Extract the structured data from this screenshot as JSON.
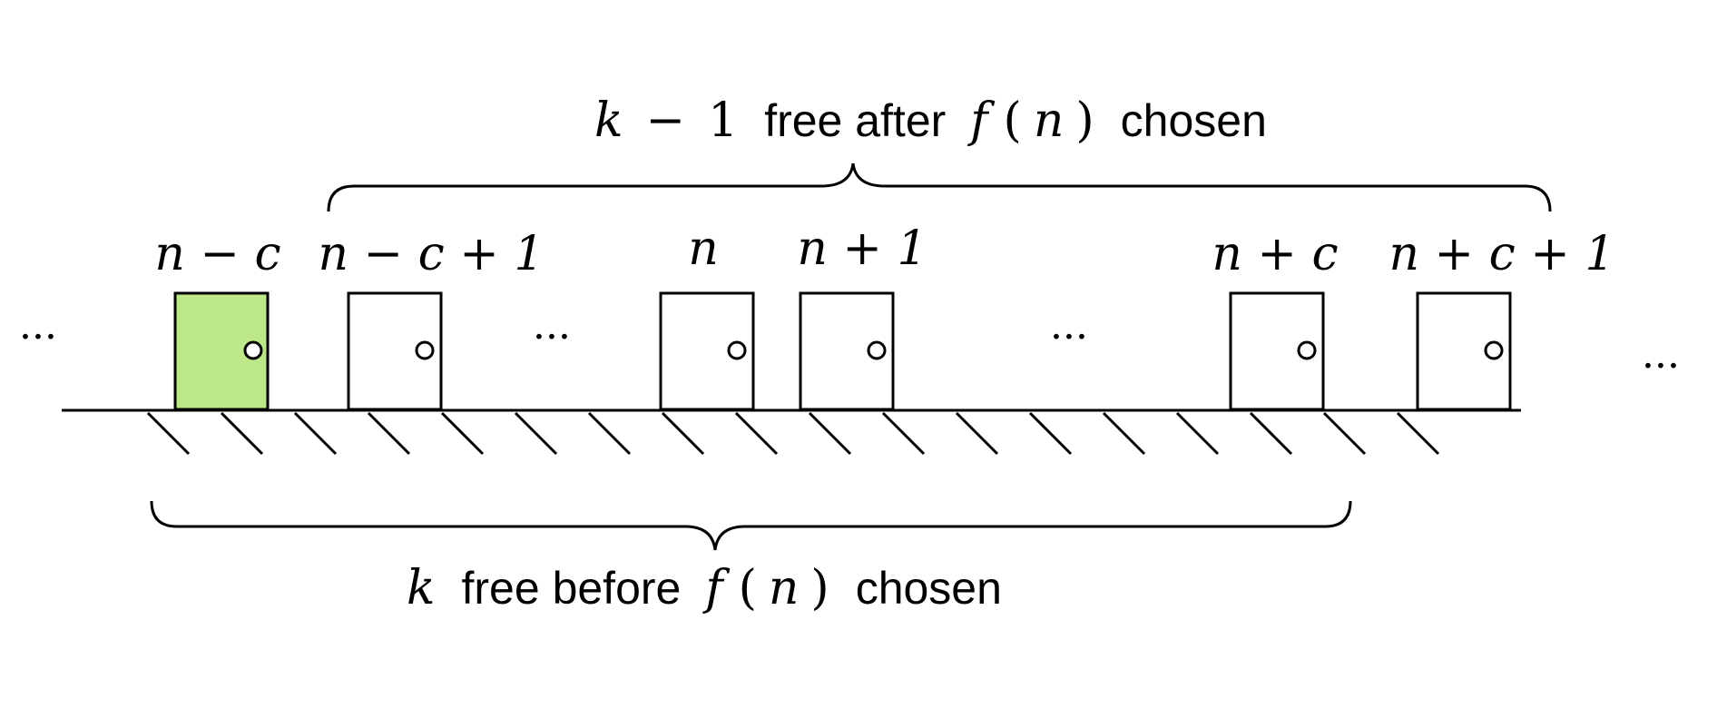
{
  "diagram": {
    "top_brace_label": {
      "math_k": "k",
      "minus": "−",
      "one": "1",
      "text_free_after": "free after",
      "math_f": "f",
      "paren_open": "(",
      "math_n": "n",
      "paren_close": ")",
      "text_chosen": "chosen"
    },
    "bottom_brace_label": {
      "math_k": "k",
      "text_free_before": "free before",
      "math_f": "f",
      "paren_open": "(",
      "math_n": "n",
      "paren_close": ")",
      "text_chosen": "chosen"
    },
    "door_labels": [
      "n − c",
      "n − c + 1",
      "n",
      "n + 1",
      "n + c",
      "n + c + 1"
    ],
    "ellipsis": "···",
    "highlight_color": "#bde88a",
    "highlighted_door_index": 0
  }
}
